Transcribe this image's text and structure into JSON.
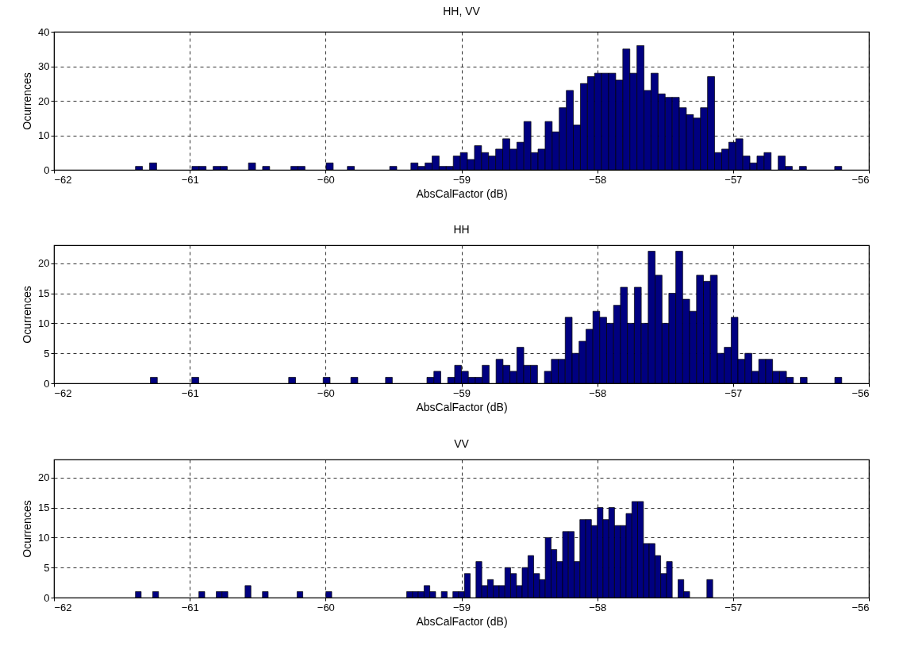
{
  "chart_data": [
    {
      "type": "histogram",
      "title": "HH, VV",
      "xlabel": "AbsCalFactor (dB)",
      "ylabel": "Ocurrences",
      "color": "#000080",
      "grid": true,
      "xlim": [
        -62,
        -56
      ],
      "xticks": [
        -62,
        -61,
        -60,
        -59,
        -58,
        -57,
        -56
      ],
      "ylim": [
        0,
        40
      ],
      "yticks": [
        0,
        10,
        20,
        30,
        40
      ],
      "bins": [
        -61.4,
        -61.348,
        -61.296,
        -61.244,
        -61.192,
        -61.14,
        -61.088,
        -61.036,
        -60.984,
        -60.932,
        -60.88,
        -60.828,
        -60.776,
        -60.724,
        -60.672,
        -60.62,
        -60.568,
        -60.516,
        -60.464,
        -60.412,
        -60.36,
        -60.308,
        -60.256,
        -60.204,
        -60.152,
        -60.1,
        -60.048,
        -59.996,
        -59.944,
        -59.892,
        -59.84,
        -59.788,
        -59.736,
        -59.684,
        -59.632,
        -59.58,
        -59.528,
        -59.476,
        -59.424,
        -59.372,
        -59.32,
        -59.268,
        -59.216,
        -59.164,
        -59.112,
        -59.06,
        -59.008,
        -58.956,
        -58.904,
        -58.852,
        -58.8,
        -58.748,
        -58.696,
        -58.644,
        -58.592,
        -58.54,
        -58.488,
        -58.436,
        -58.384,
        -58.332,
        -58.28,
        -58.228,
        -58.176,
        -58.124,
        -58.072,
        -58.02,
        -57.968,
        -57.916,
        -57.864,
        -57.812,
        -57.76,
        -57.708,
        -57.656,
        -57.604,
        -57.552,
        -57.5,
        -57.448,
        -57.396,
        -57.344,
        -57.292,
        -57.24,
        -57.188,
        -57.136,
        -57.084,
        -57.032,
        -56.98,
        -56.928,
        -56.876,
        -56.824,
        -56.772,
        -56.72,
        -56.668,
        -56.616,
        -56.564,
        -56.512,
        -56.46,
        -56.408,
        -56.356,
        -56.304,
        -56.252,
        -56.2
      ],
      "values": [
        1,
        0,
        2,
        0,
        0,
        0,
        0,
        0,
        1,
        1,
        0,
        1,
        1,
        0,
        0,
        0,
        2,
        0,
        1,
        0,
        0,
        0,
        1,
        1,
        0,
        0,
        0,
        2,
        0,
        0,
        1,
        0,
        0,
        0,
        0,
        0,
        1,
        0,
        0,
        2,
        1,
        2,
        4,
        1,
        1,
        4,
        5,
        3,
        7,
        5,
        4,
        6,
        9,
        6,
        8,
        14,
        5,
        6,
        14,
        11,
        18,
        23,
        13,
        25,
        27,
        28,
        28,
        28,
        26,
        35,
        28,
        36,
        23,
        28,
        22,
        21,
        21,
        18,
        16,
        15,
        18,
        27,
        5,
        6,
        8,
        9,
        4,
        2,
        4,
        5,
        0,
        4,
        1,
        0,
        1,
        0,
        0,
        0,
        0,
        1
      ]
    },
    {
      "type": "histogram",
      "title": "HH",
      "xlabel": "AbsCalFactor (dB)",
      "ylabel": "Ocurrences",
      "color": "#000080",
      "grid": true,
      "xlim": [
        -62,
        -56
      ],
      "xticks": [
        -62,
        -61,
        -60,
        -59,
        -58,
        -57,
        -56
      ],
      "ylim": [
        0,
        23
      ],
      "yticks": [
        0,
        5,
        10,
        15,
        20
      ],
      "bins": [
        -61.29,
        -61.239,
        -61.188,
        -61.137,
        -61.086,
        -61.036,
        -60.985,
        -60.934,
        -60.883,
        -60.832,
        -60.781,
        -60.73,
        -60.679,
        -60.628,
        -60.577,
        -60.527,
        -60.476,
        -60.425,
        -60.374,
        -60.323,
        -60.272,
        -60.221,
        -60.17,
        -60.119,
        -60.068,
        -60.018,
        -59.967,
        -59.916,
        -59.865,
        -59.814,
        -59.763,
        -59.712,
        -59.661,
        -59.61,
        -59.559,
        -59.509,
        -59.458,
        -59.407,
        -59.356,
        -59.305,
        -59.254,
        -59.203,
        -59.152,
        -59.101,
        -59.05,
        -59.0,
        -58.949,
        -58.898,
        -58.847,
        -58.796,
        -58.745,
        -58.694,
        -58.643,
        -58.592,
        -58.541,
        -58.491,
        -58.44,
        -58.389,
        -58.338,
        -58.287,
        -58.236,
        -58.185,
        -58.134,
        -58.083,
        -58.032,
        -57.982,
        -57.931,
        -57.88,
        -57.829,
        -57.778,
        -57.727,
        -57.676,
        -57.625,
        -57.574,
        -57.523,
        -57.473,
        -57.422,
        -57.371,
        -57.32,
        -57.269,
        -57.218,
        -57.167,
        -57.116,
        -57.065,
        -57.014,
        -56.964,
        -56.913,
        -56.862,
        -56.811,
        -56.76,
        -56.709,
        -56.658,
        -56.607,
        -56.556,
        -56.505,
        -56.455,
        -56.404,
        -56.353,
        -56.302,
        -56.251,
        -56.2
      ],
      "values": [
        1,
        0,
        0,
        0,
        0,
        0,
        1,
        0,
        0,
        0,
        0,
        0,
        0,
        0,
        0,
        0,
        0,
        0,
        0,
        0,
        1,
        0,
        0,
        0,
        0,
        1,
        0,
        0,
        0,
        1,
        0,
        0,
        0,
        0,
        1,
        0,
        0,
        0,
        0,
        0,
        1,
        2,
        0,
        1,
        3,
        2,
        1,
        1,
        3,
        0,
        4,
        3,
        2,
        6,
        3,
        3,
        0,
        2,
        4,
        4,
        11,
        5,
        7,
        9,
        12,
        11,
        10,
        13,
        16,
        10,
        16,
        10,
        22,
        18,
        10,
        15,
        22,
        14,
        12,
        18,
        17,
        18,
        5,
        6,
        11,
        4,
        5,
        2,
        4,
        4,
        2,
        2,
        1,
        0,
        1,
        0,
        0,
        0,
        0,
        1
      ]
    },
    {
      "type": "histogram",
      "title": "VV",
      "xlabel": "AbsCalFactor (dB)",
      "ylabel": "Ocurrences",
      "color": "#000080",
      "grid": true,
      "xlim": [
        -62,
        -56
      ],
      "xticks": [
        -62,
        -61,
        -60,
        -59,
        -58,
        -57,
        -56
      ],
      "ylim": [
        0,
        23
      ],
      "yticks": [
        0,
        5,
        10,
        15,
        20
      ],
      "bins": [
        -61.4,
        -61.358,
        -61.315,
        -61.273,
        -61.23,
        -61.188,
        -61.145,
        -61.103,
        -61.06,
        -61.018,
        -60.975,
        -60.933,
        -60.89,
        -60.848,
        -60.805,
        -60.763,
        -60.72,
        -60.678,
        -60.635,
        -60.593,
        -60.55,
        -60.508,
        -60.465,
        -60.423,
        -60.38,
        -60.338,
        -60.295,
        -60.253,
        -60.21,
        -60.168,
        -60.125,
        -60.083,
        -60.04,
        -59.998,
        -59.955,
        -59.913,
        -59.87,
        -59.828,
        -59.785,
        -59.743,
        -59.7,
        -59.658,
        -59.615,
        -59.573,
        -59.53,
        -59.488,
        -59.445,
        -59.403,
        -59.36,
        -59.318,
        -59.275,
        -59.233,
        -59.19,
        -59.148,
        -59.105,
        -59.063,
        -59.02,
        -58.978,
        -58.935,
        -58.893,
        -58.85,
        -58.808,
        -58.765,
        -58.723,
        -58.68,
        -58.638,
        -58.595,
        -58.553,
        -58.51,
        -58.468,
        -58.425,
        -58.383,
        -58.34,
        -58.298,
        -58.255,
        -58.213,
        -58.17,
        -58.128,
        -58.085,
        -58.043,
        -58.0,
        -57.958,
        -57.915,
        -57.873,
        -57.83,
        -57.788,
        -57.745,
        -57.703,
        -57.66,
        -57.618,
        -57.575,
        -57.533,
        -57.49,
        -57.448,
        -57.405,
        -57.363,
        -57.32,
        -57.278,
        -57.235,
        -57.193,
        -57.15
      ],
      "values": [
        1,
        0,
        0,
        1,
        0,
        0,
        0,
        0,
        0,
        0,
        0,
        1,
        0,
        0,
        1,
        1,
        0,
        0,
        0,
        2,
        0,
        0,
        1,
        0,
        0,
        0,
        0,
        0,
        1,
        0,
        0,
        0,
        0,
        1,
        0,
        0,
        0,
        0,
        0,
        0,
        0,
        0,
        0,
        0,
        0,
        0,
        0,
        1,
        1,
        1,
        2,
        1,
        0,
        1,
        0,
        1,
        1,
        4,
        0,
        6,
        2,
        3,
        2,
        2,
        5,
        4,
        2,
        5,
        7,
        4,
        3,
        10,
        8,
        6,
        11,
        11,
        6,
        13,
        13,
        12,
        15,
        13,
        15,
        12,
        12,
        14,
        16,
        16,
        9,
        9,
        7,
        4,
        6,
        0,
        3,
        1,
        0,
        0,
        0,
        3
      ]
    }
  ]
}
